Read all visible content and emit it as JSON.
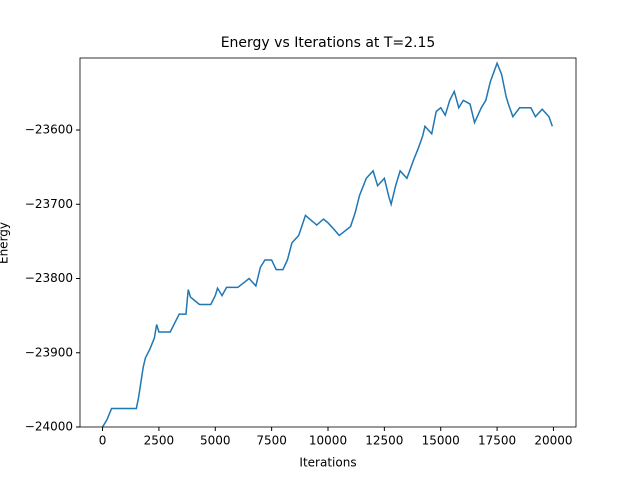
{
  "chart_data": {
    "type": "line",
    "title": "Energy vs Iterations at T=2.15",
    "xlabel": "Iterations",
    "ylabel": "Energy",
    "x": [
      0,
      200,
      400,
      1500,
      1600,
      1700,
      1800,
      1900,
      2100,
      2300,
      2400,
      2500,
      3000,
      3200,
      3400,
      3700,
      3800,
      3900,
      4300,
      4800,
      5000,
      5100,
      5300,
      5500,
      6000,
      6500,
      6800,
      7000,
      7200,
      7500,
      7700,
      8000,
      8200,
      8400,
      8700,
      9000,
      9500,
      9800,
      10000,
      10300,
      10500,
      11000,
      11200,
      11400,
      11700,
      12000,
      12200,
      12500,
      12700,
      12800,
      13000,
      13200,
      13500,
      13800,
      14000,
      14200,
      14300,
      14600,
      14800,
      15000,
      15200,
      15400,
      15600,
      15800,
      16000,
      16300,
      16500,
      16800,
      17000,
      17200,
      17500,
      17700,
      17900,
      18000,
      18200,
      18500,
      19000,
      19200,
      19500,
      19800,
      19950
    ],
    "series": [
      {
        "name": "Energy",
        "color": "#1f77b4",
        "values": [
          -24000,
          -23990,
          -23975,
          -23975,
          -23960,
          -23940,
          -23920,
          -23907,
          -23895,
          -23880,
          -23862,
          -23872,
          -23872,
          -23860,
          -23848,
          -23848,
          -23815,
          -23825,
          -23835,
          -23835,
          -23823,
          -23813,
          -23823,
          -23812,
          -23812,
          -23800,
          -23810,
          -23785,
          -23775,
          -23775,
          -23788,
          -23788,
          -23775,
          -23752,
          -23742,
          -23715,
          -23728,
          -23720,
          -23725,
          -23735,
          -23742,
          -23730,
          -23712,
          -23688,
          -23665,
          -23655,
          -23675,
          -23665,
          -23690,
          -23700,
          -23675,
          -23655,
          -23665,
          -23640,
          -23625,
          -23608,
          -23595,
          -23605,
          -23575,
          -23570,
          -23580,
          -23560,
          -23548,
          -23570,
          -23560,
          -23565,
          -23590,
          -23570,
          -23560,
          -23535,
          -23510,
          -23525,
          -23555,
          -23565,
          -23582,
          -23570,
          -23570,
          -23582,
          -23572,
          -23582,
          -23595
        ]
      }
    ],
    "xlim": [
      -1000,
      21000
    ],
    "ylim": [
      -24000,
      -23503
    ],
    "xticks": [
      0,
      2500,
      5000,
      7500,
      10000,
      12500,
      15000,
      17500,
      20000
    ],
    "yticks": [
      {
        "value": -24000,
        "label": "−24000"
      },
      {
        "value": -23900,
        "label": "−23900"
      },
      {
        "value": -23800,
        "label": "−23800"
      },
      {
        "value": -23700,
        "label": "−23700"
      },
      {
        "value": -23600,
        "label": "−23600"
      }
    ]
  }
}
